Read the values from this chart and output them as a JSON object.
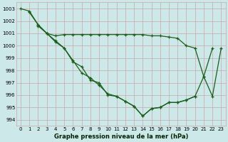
{
  "xlabel": "Graphe pression niveau de la mer (hPa)",
  "ylim": [
    993.5,
    1003.5
  ],
  "xlim": [
    -0.5,
    23.5
  ],
  "yticks": [
    994,
    995,
    996,
    997,
    998,
    999,
    1000,
    1001,
    1002,
    1003
  ],
  "xticks": [
    0,
    1,
    2,
    3,
    4,
    5,
    6,
    7,
    8,
    9,
    10,
    11,
    12,
    13,
    14,
    15,
    16,
    17,
    18,
    19,
    20,
    21,
    22,
    23
  ],
  "bg_color": "#cce8e8",
  "grid_color": "#c8a8a8",
  "line_color": "#1a5e1a",
  "line1_x": [
    0,
    1,
    2,
    3,
    4,
    5,
    6,
    7,
    8,
    9,
    10,
    11,
    12,
    13,
    14,
    15,
    16,
    17,
    18,
    19,
    20
  ],
  "line1_y": [
    1003.0,
    1002.8,
    1001.7,
    1001.0,
    1000.3,
    999.8,
    998.7,
    998.3,
    997.2,
    997.0,
    996.0,
    995.9,
    995.5,
    995.1,
    994.3,
    994.9,
    995.0,
    995.4,
    995.4,
    995.6,
    995.9
  ],
  "line2_x": [
    1,
    2,
    3,
    4,
    5,
    6,
    7,
    8,
    9,
    10,
    11,
    12,
    13,
    14,
    15,
    16,
    17,
    18,
    19,
    20,
    21,
    22
  ],
  "line2_y": [
    1002.7,
    1001.7,
    1001.0,
    1000.4,
    999.8,
    998.8,
    997.8,
    997.4,
    996.8,
    996.1,
    995.9,
    995.5,
    995.1,
    994.3,
    994.9,
    995.0,
    995.4,
    995.4,
    995.6,
    995.9,
    997.5,
    999.8
  ],
  "line3_x": [
    2,
    3,
    4,
    5,
    6,
    7,
    8,
    9,
    10,
    11,
    12,
    13,
    14,
    15,
    16,
    17,
    18,
    19,
    20,
    21,
    22,
    23
  ],
  "line3_y": [
    1001.6,
    1001.0,
    1000.8,
    1000.9,
    1000.9,
    1000.9,
    1000.9,
    1000.9,
    1000.9,
    1000.9,
    1000.9,
    1000.9,
    1000.9,
    1000.8,
    1000.8,
    1000.7,
    1000.6,
    1000.0,
    999.8,
    997.5,
    995.9,
    999.8
  ],
  "xlabel_fontsize": 6.0,
  "tick_fontsize": 5.0
}
